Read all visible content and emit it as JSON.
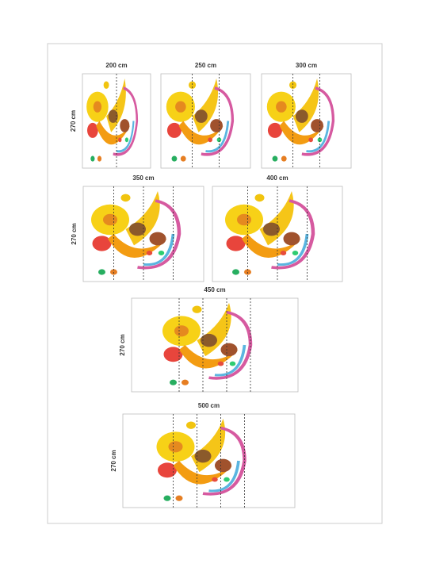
{
  "panels": [
    {
      "width": "200 cm",
      "height": "270 cm"
    },
    {
      "width": "250 cm"
    },
    {
      "width": "300 cm"
    },
    {
      "width": "350 cm",
      "height": "270 cm"
    },
    {
      "width": "400 cm"
    },
    {
      "width": "450 cm",
      "height": "270 cm"
    },
    {
      "width": "500 cm",
      "height": "270 cm"
    }
  ]
}
